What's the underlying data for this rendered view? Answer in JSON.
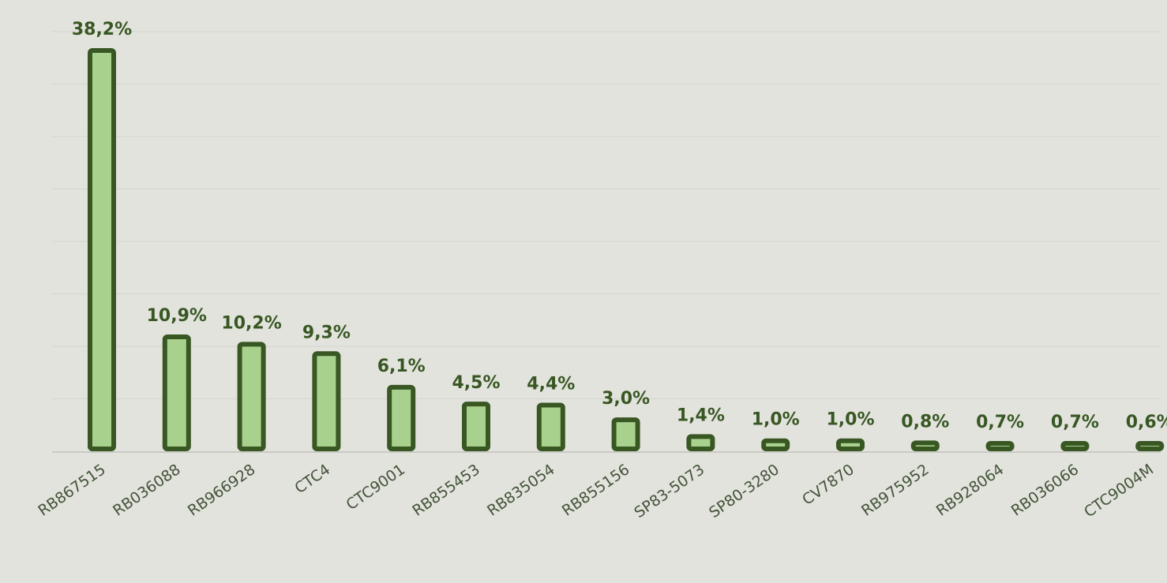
{
  "chart_data": {
    "type": "bar",
    "categories": [
      "RB867515",
      "RB036088",
      "RB966928",
      "CTC4",
      "CTC9001",
      "RB855453",
      "RB835054",
      "RB855156",
      "SP83-5073",
      "SP80-3280",
      "CV7870",
      "RB975952",
      "RB928064",
      "RB036066",
      "CTC9004M"
    ],
    "values": [
      38.2,
      10.9,
      10.2,
      9.3,
      6.1,
      4.5,
      4.4,
      3.0,
      1.4,
      1.0,
      1.0,
      0.8,
      0.7,
      0.7,
      0.6
    ],
    "data_labels": [
      "38,2%",
      "10,9%",
      "10,2%",
      "9,3%",
      "6,1%",
      "4,5%",
      "4,4%",
      "3,0%",
      "1,4%",
      "1,0%",
      "1,0%",
      "0,8%",
      "0,7%",
      "0,7%",
      "0,6%"
    ],
    "unit": "%",
    "title": "",
    "xlabel": "",
    "ylabel": "",
    "ylim": [
      0,
      40
    ],
    "grid": true,
    "legend": "none",
    "colors": {
      "background": "#e2e3dd",
      "bar_fill": "#a9d18e",
      "bar_stroke": "#385723",
      "label_color": "#385723",
      "tick_color": "#44543a"
    }
  }
}
